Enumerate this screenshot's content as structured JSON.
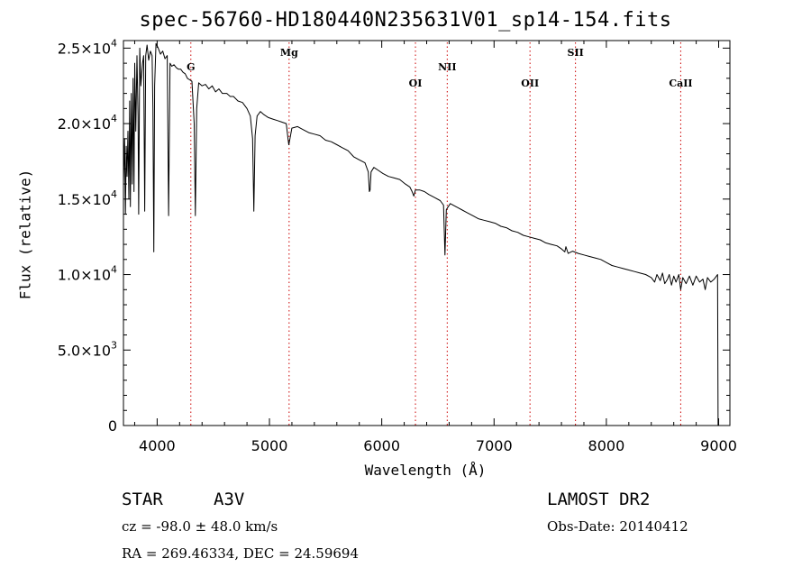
{
  "chart_data": {
    "type": "line",
    "title": "spec-56760-HD180440N235631V01_sp14-154.fits",
    "xlabel": "Wavelength (Å)",
    "ylabel": "Flux (relative)",
    "xlim": [
      3700,
      9100
    ],
    "ylim": [
      0,
      25500
    ],
    "x_ticks": [
      4000,
      5000,
      6000,
      7000,
      8000,
      9000
    ],
    "x_tick_labels": [
      "4000",
      "5000",
      "6000",
      "7000",
      "8000",
      "9000"
    ],
    "y_ticks": [
      0,
      5000,
      10000,
      15000,
      20000,
      25000
    ],
    "y_tick_labels": [
      {
        "base": "0",
        "exp": ""
      },
      {
        "base": "5.0×10",
        "exp": "3"
      },
      {
        "base": "1.0×10",
        "exp": "4"
      },
      {
        "base": "1.5×10",
        "exp": "4"
      },
      {
        "base": "2.0×10",
        "exp": "4"
      },
      {
        "base": "2.5×10",
        "exp": "4"
      }
    ],
    "grid": false,
    "spectral_lines": [
      {
        "label": "G",
        "x": 4300
      },
      {
        "label": "Mg",
        "x": 5175
      },
      {
        "label": "OI",
        "x": 6300
      },
      {
        "label": "NII",
        "x": 6583
      },
      {
        "label": "OII",
        "x": 7320
      },
      {
        "label": "SII",
        "x": 7725
      },
      {
        "label": "CaII",
        "x": 8662
      }
    ],
    "line_color": "#000000",
    "marker_color": "#cc0000",
    "series": [
      {
        "points": [
          [
            3700,
            16000
          ],
          [
            3710,
            19000
          ],
          [
            3718,
            14000
          ],
          [
            3725,
            18500
          ],
          [
            3732,
            16500
          ],
          [
            3740,
            19500
          ],
          [
            3748,
            15000
          ],
          [
            3755,
            21500
          ],
          [
            3762,
            14500
          ],
          [
            3770,
            22000
          ],
          [
            3778,
            16000
          ],
          [
            3786,
            23000
          ],
          [
            3794,
            15500
          ],
          [
            3800,
            24000
          ],
          [
            3810,
            19500
          ],
          [
            3820,
            24500
          ],
          [
            3830,
            20500
          ],
          [
            3836,
            14000
          ],
          [
            3845,
            25000
          ],
          [
            3855,
            22500
          ],
          [
            3870,
            24000
          ],
          [
            3880,
            24500
          ],
          [
            3889,
            14200
          ],
          [
            3898,
            24500
          ],
          [
            3910,
            25200
          ],
          [
            3925,
            24200
          ],
          [
            3940,
            24800
          ],
          [
            3955,
            24500
          ],
          [
            3962,
            21000
          ],
          [
            3970,
            11500
          ],
          [
            3978,
            22500
          ],
          [
            3990,
            25300
          ],
          [
            4010,
            25000
          ],
          [
            4030,
            24600
          ],
          [
            4050,
            24800
          ],
          [
            4070,
            24300
          ],
          [
            4090,
            24500
          ],
          [
            4102,
            13900
          ],
          [
            4115,
            24000
          ],
          [
            4130,
            23800
          ],
          [
            4150,
            23900
          ],
          [
            4170,
            23700
          ],
          [
            4190,
            23600
          ],
          [
            4210,
            23600
          ],
          [
            4230,
            23400
          ],
          [
            4250,
            23300
          ],
          [
            4270,
            23000
          ],
          [
            4290,
            22900
          ],
          [
            4310,
            22800
          ],
          [
            4330,
            20000
          ],
          [
            4340,
            13900
          ],
          [
            4352,
            21000
          ],
          [
            4370,
            22700
          ],
          [
            4400,
            22500
          ],
          [
            4430,
            22600
          ],
          [
            4460,
            22300
          ],
          [
            4490,
            22500
          ],
          [
            4520,
            22100
          ],
          [
            4550,
            22300
          ],
          [
            4580,
            22000
          ],
          [
            4620,
            22000
          ],
          [
            4650,
            21800
          ],
          [
            4680,
            21800
          ],
          [
            4720,
            21500
          ],
          [
            4760,
            21400
          ],
          [
            4800,
            21000
          ],
          [
            4830,
            20500
          ],
          [
            4850,
            19000
          ],
          [
            4861,
            14200
          ],
          [
            4872,
            19200
          ],
          [
            4890,
            20500
          ],
          [
            4920,
            20800
          ],
          [
            4950,
            20600
          ],
          [
            4990,
            20400
          ],
          [
            5030,
            20300
          ],
          [
            5070,
            20200
          ],
          [
            5110,
            20100
          ],
          [
            5150,
            20000
          ],
          [
            5165,
            19000
          ],
          [
            5172,
            18600
          ],
          [
            5183,
            19000
          ],
          [
            5200,
            19700
          ],
          [
            5250,
            19800
          ],
          [
            5300,
            19600
          ],
          [
            5350,
            19400
          ],
          [
            5400,
            19300
          ],
          [
            5450,
            19200
          ],
          [
            5500,
            18900
          ],
          [
            5550,
            18800
          ],
          [
            5600,
            18600
          ],
          [
            5650,
            18400
          ],
          [
            5700,
            18200
          ],
          [
            5750,
            17800
          ],
          [
            5800,
            17600
          ],
          [
            5850,
            17400
          ],
          [
            5880,
            16800
          ],
          [
            5890,
            15500
          ],
          [
            5896,
            15600
          ],
          [
            5905,
            16800
          ],
          [
            5930,
            17100
          ],
          [
            5970,
            16900
          ],
          [
            6010,
            16700
          ],
          [
            6060,
            16500
          ],
          [
            6110,
            16400
          ],
          [
            6160,
            16300
          ],
          [
            6210,
            16000
          ],
          [
            6250,
            15800
          ],
          [
            6270,
            15500
          ],
          [
            6285,
            15200
          ],
          [
            6300,
            15600
          ],
          [
            6340,
            15600
          ],
          [
            6380,
            15500
          ],
          [
            6420,
            15300
          ],
          [
            6470,
            15100
          ],
          [
            6520,
            14900
          ],
          [
            6550,
            14600
          ],
          [
            6563,
            11300
          ],
          [
            6575,
            14300
          ],
          [
            6610,
            14700
          ],
          [
            6660,
            14500
          ],
          [
            6710,
            14300
          ],
          [
            6760,
            14100
          ],
          [
            6810,
            13900
          ],
          [
            6860,
            13700
          ],
          [
            6910,
            13600
          ],
          [
            6960,
            13500
          ],
          [
            7010,
            13400
          ],
          [
            7060,
            13200
          ],
          [
            7110,
            13100
          ],
          [
            7160,
            12900
          ],
          [
            7210,
            12800
          ],
          [
            7260,
            12600
          ],
          [
            7310,
            12500
          ],
          [
            7360,
            12400
          ],
          [
            7410,
            12300
          ],
          [
            7460,
            12100
          ],
          [
            7510,
            12000
          ],
          [
            7560,
            11900
          ],
          [
            7600,
            11700
          ],
          [
            7630,
            11500
          ],
          [
            7640,
            11850
          ],
          [
            7660,
            11400
          ],
          [
            7700,
            11550
          ],
          [
            7750,
            11400
          ],
          [
            7800,
            11300
          ],
          [
            7850,
            11200
          ],
          [
            7900,
            11100
          ],
          [
            7950,
            11000
          ],
          [
            8000,
            10800
          ],
          [
            8050,
            10600
          ],
          [
            8100,
            10500
          ],
          [
            8150,
            10400
          ],
          [
            8200,
            10300
          ],
          [
            8250,
            10200
          ],
          [
            8300,
            10100
          ],
          [
            8350,
            10000
          ],
          [
            8400,
            9800
          ],
          [
            8430,
            9500
          ],
          [
            8450,
            10000
          ],
          [
            8480,
            9600
          ],
          [
            8500,
            10100
          ],
          [
            8520,
            9400
          ],
          [
            8545,
            9700
          ],
          [
            8560,
            10000
          ],
          [
            8580,
            9300
          ],
          [
            8600,
            9900
          ],
          [
            8620,
            9500
          ],
          [
            8645,
            10000
          ],
          [
            8662,
            9000
          ],
          [
            8680,
            9800
          ],
          [
            8710,
            9400
          ],
          [
            8740,
            9900
          ],
          [
            8770,
            9300
          ],
          [
            8800,
            9900
          ],
          [
            8830,
            9500
          ],
          [
            8860,
            9700
          ],
          [
            8880,
            9000
          ],
          [
            8900,
            9800
          ],
          [
            8930,
            9500
          ],
          [
            8960,
            9700
          ],
          [
            8990,
            10000
          ],
          [
            8995,
            0
          ],
          [
            9000,
            0
          ]
        ]
      }
    ]
  },
  "footer": {
    "object_type": "STAR",
    "subclass": "A3V",
    "survey": "LAMOST DR2",
    "redshift_text": "cz = -98.0 ± 48.0 km/s",
    "obs_date_text": "Obs-Date: 20140412",
    "coords_text": "RA = 269.46334, DEC =  24.59694"
  }
}
